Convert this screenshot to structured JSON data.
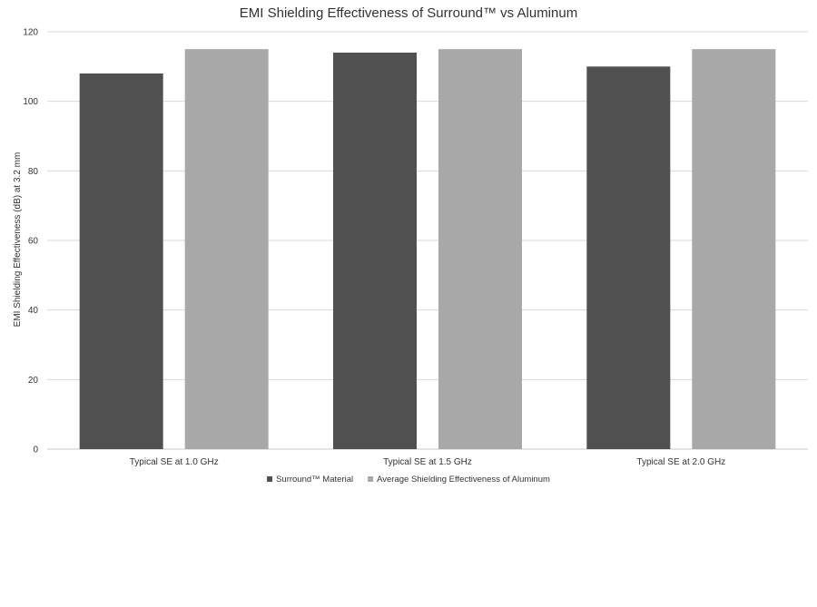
{
  "chart_data": {
    "type": "bar",
    "title": "EMI Shielding Effectiveness of Surround™ vs Aluminum",
    "xlabel": "",
    "ylabel": "EMI Shielding Effectiveness (dB) at 3.2 mm",
    "categories": [
      "Typical SE at 1.0 GHz",
      "Typical SE at 1.5 GHz",
      "Typical SE at 2.0 GHz"
    ],
    "series": [
      {
        "name": "Surround™ Material",
        "values": [
          108,
          114,
          110
        ],
        "color": "#505050"
      },
      {
        "name": "Average Shielding Effectiveness of Aluminum",
        "values": [
          115,
          115,
          115
        ],
        "color": "#a8a8a8"
      }
    ],
    "ylim": [
      0,
      120
    ],
    "yticks": [
      0,
      20,
      40,
      60,
      80,
      100,
      120
    ],
    "grid": true,
    "legend_position": "bottom"
  }
}
